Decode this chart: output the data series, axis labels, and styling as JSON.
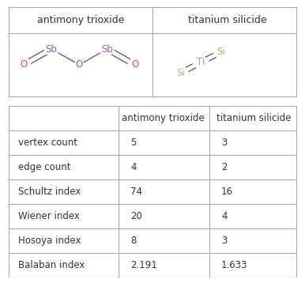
{
  "title1": "antimony trioxide",
  "title2": "titanium silicide",
  "rows": [
    {
      "label": "vertex count",
      "val1": "5",
      "val2": "3"
    },
    {
      "label": "edge count",
      "val1": "4",
      "val2": "2"
    },
    {
      "label": "Schultz index",
      "val1": "74",
      "val2": "16"
    },
    {
      "label": "Wiener index",
      "val1": "20",
      "val2": "4"
    },
    {
      "label": "Hosoya index",
      "val1": "8",
      "val2": "3"
    },
    {
      "label": "Balaban index",
      "val1": "2.191",
      "val2": "1.633"
    }
  ],
  "header_row": [
    "",
    "antimony trioxide",
    "titanium silicide"
  ],
  "bg_color": "#ffffff",
  "border_color": "#aaaaaa",
  "text_color": "#333333",
  "sb_color": "#9b59b6",
  "o_color": "#e74c3c",
  "ti_color": "#999999",
  "si_color": "#c8a96e"
}
